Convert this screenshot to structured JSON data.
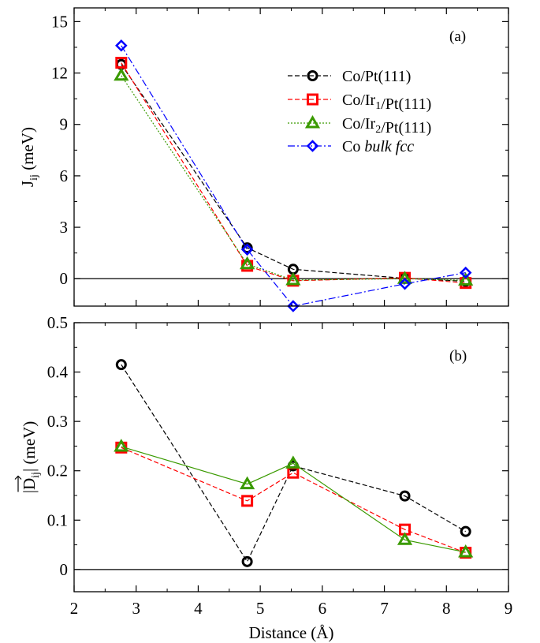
{
  "chart_data": [
    {
      "type": "line",
      "panel_label": "(a)",
      "ylabel": {
        "main": "J",
        "sub": "ij",
        "unit": " (meV)"
      },
      "xlim": [
        2,
        9
      ],
      "ylim": [
        -1.6,
        15.8
      ],
      "xticks": [
        2,
        3,
        4,
        5,
        6,
        7,
        8,
        9
      ],
      "yticks": [
        0,
        3,
        6,
        9,
        12,
        15
      ],
      "yticklabels": [
        "0",
        "3",
        "6",
        "9",
        "12",
        "15"
      ],
      "zero_line": true,
      "legend": {
        "position": "top-right",
        "visible": true
      },
      "series": [
        {
          "name": "Co/Pt(111)",
          "name_parts": [
            [
              "Co/Pt(111)",
              ""
            ]
          ],
          "color": "#000000",
          "marker": "circle",
          "dash": "6,3",
          "x": [
            2.76,
            4.79,
            5.53,
            7.33,
            8.31
          ],
          "y": [
            12.5,
            1.8,
            0.55,
            0.02,
            -0.15
          ]
        },
        {
          "name": "Co/Ir1/Pt(111)",
          "name_parts": [
            [
              "Co/Ir",
              ""
            ],
            [
              "1",
              "sub"
            ],
            [
              "/Pt(111)",
              ""
            ]
          ],
          "color": "#ff0000",
          "marker": "square",
          "dash": "6,3",
          "x": [
            2.76,
            4.79,
            5.53,
            7.33,
            8.31
          ],
          "y": [
            12.6,
            0.75,
            -0.12,
            0.05,
            -0.25
          ]
        },
        {
          "name": "Co/Ir2/Pt(111)",
          "name_parts": [
            [
              "Co/Ir",
              ""
            ],
            [
              "2",
              "sub"
            ],
            [
              "/Pt(111)",
              ""
            ]
          ],
          "color": "#3a9a00",
          "marker": "triangle",
          "dash": "2,2",
          "x": [
            2.76,
            4.79,
            5.53,
            7.33,
            8.31
          ],
          "y": [
            11.85,
            0.85,
            -0.08,
            0.0,
            -0.1
          ]
        },
        {
          "name": "Co bulk fcc",
          "name_parts": [
            [
              "Co ",
              ""
            ],
            [
              "bulk fcc",
              "italic"
            ]
          ],
          "color": "#0000ff",
          "marker": "diamond",
          "dash": "9,3,2,3",
          "x": [
            2.76,
            4.79,
            5.53,
            7.33,
            8.31
          ],
          "y": [
            13.6,
            1.7,
            -1.6,
            -0.3,
            0.35
          ]
        }
      ]
    },
    {
      "type": "line",
      "panel_label": "(b)",
      "ylabel": {
        "main": "|D",
        "sub": "ij",
        "unit": "| (meV)"
      },
      "xlabel": "Distance (Å)",
      "xlim": [
        2,
        9
      ],
      "ylim": [
        -0.045,
        0.5
      ],
      "xticks": [
        2,
        3,
        4,
        5,
        6,
        7,
        8,
        9
      ],
      "xticklabels": [
        "2",
        "3",
        "4",
        "5",
        "6",
        "7",
        "8",
        "9"
      ],
      "yticks": [
        0,
        0.1,
        0.2,
        0.3,
        0.4,
        0.5
      ],
      "yticklabels": [
        "0",
        "0.1",
        "0.2",
        "0.3",
        "0.4",
        "0.5"
      ],
      "zero_line": true,
      "series": [
        {
          "name": "Co/Pt(111)",
          "color": "#000000",
          "marker": "circle",
          "dash": "6,3",
          "x": [
            2.76,
            4.79,
            5.53,
            7.33,
            8.31
          ],
          "y": [
            0.415,
            0.016,
            0.21,
            0.149,
            0.077
          ]
        },
        {
          "name": "Co/Ir1/Pt(111)",
          "color": "#ff0000",
          "marker": "square",
          "dash": "6,3",
          "x": [
            2.76,
            4.79,
            5.53,
            7.33,
            8.31
          ],
          "y": [
            0.247,
            0.139,
            0.196,
            0.081,
            0.034
          ]
        },
        {
          "name": "Co/Ir2/Pt(111)",
          "color": "#3a9a00",
          "marker": "triangle",
          "dash": "",
          "x": [
            2.76,
            4.79,
            5.53,
            7.33,
            8.31
          ],
          "y": [
            0.249,
            0.173,
            0.215,
            0.06,
            0.035
          ]
        }
      ]
    }
  ]
}
